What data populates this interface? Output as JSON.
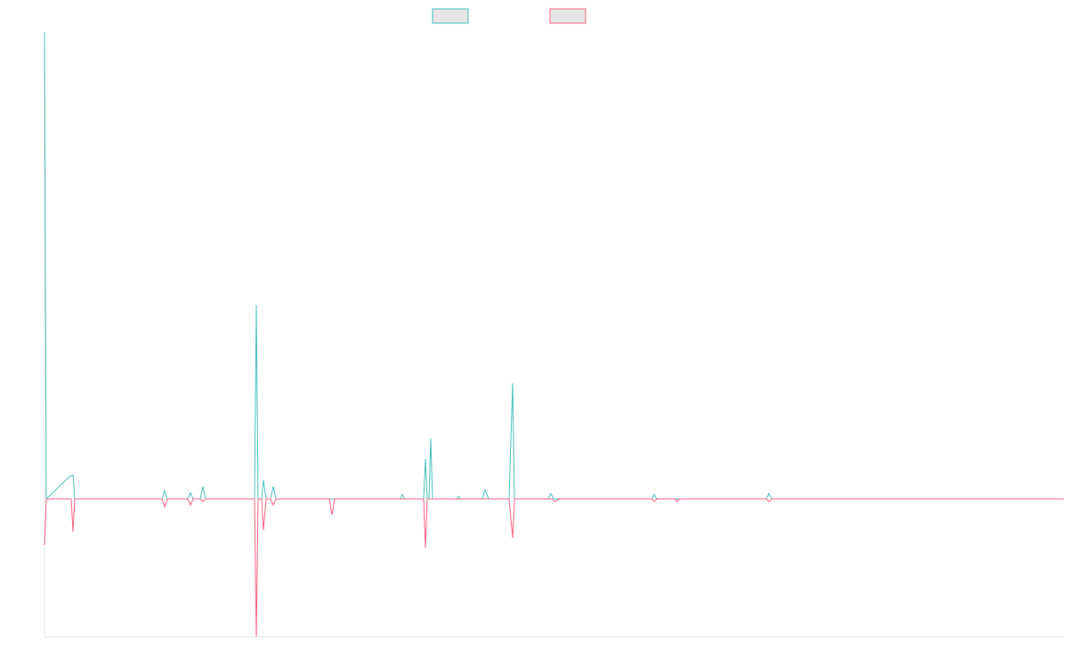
{
  "chart_data": {
    "type": "line",
    "title": "",
    "xlabel": "",
    "ylabel": "",
    "grid": false,
    "legend_placement": "top-center",
    "xlim": [
      0,
      1145
    ],
    "ylim": [
      -155,
      525
    ],
    "series": [
      {
        "color": "#4bc0c0",
        "fill": "#e5e5e5",
        "points": [
          [
            0,
            525
          ],
          [
            2,
            0
          ],
          [
            28,
            25
          ],
          [
            32,
            27
          ],
          [
            34,
            0
          ],
          [
            132,
            0
          ],
          [
            135,
            9
          ],
          [
            138,
            0
          ],
          [
            161,
            0
          ],
          [
            164,
            7
          ],
          [
            167,
            0
          ],
          [
            175,
            0
          ],
          [
            178,
            14
          ],
          [
            181,
            0
          ],
          [
            236,
            0
          ],
          [
            238,
            218
          ],
          [
            240,
            0
          ],
          [
            244,
            0
          ],
          [
            246,
            21
          ],
          [
            249,
            0
          ],
          [
            254,
            0
          ],
          [
            257,
            14
          ],
          [
            260,
            0
          ],
          [
            400,
            0
          ],
          [
            402,
            5
          ],
          [
            405,
            0
          ],
          [
            426,
            0
          ],
          [
            428,
            45
          ],
          [
            430,
            0
          ],
          [
            432,
            0
          ],
          [
            434,
            68
          ],
          [
            436,
            0
          ],
          [
            463,
            0
          ],
          [
            465,
            3
          ],
          [
            468,
            0
          ],
          [
            492,
            0
          ],
          [
            495,
            10
          ],
          [
            499,
            0
          ],
          [
            522,
            0
          ],
          [
            526,
            130
          ],
          [
            528,
            0
          ],
          [
            566,
            0
          ],
          [
            569,
            6
          ],
          [
            572,
            0
          ],
          [
            683,
            0
          ],
          [
            685,
            5
          ],
          [
            688,
            0
          ],
          [
            811,
            0
          ],
          [
            814,
            6
          ],
          [
            817,
            0
          ],
          [
            1145,
            0
          ]
        ]
      },
      {
        "color": "#ff6384",
        "fill": "#e5e5e5",
        "points": [
          [
            0,
            -52
          ],
          [
            2,
            0
          ],
          [
            30,
            0
          ],
          [
            32,
            -37
          ],
          [
            34,
            0
          ],
          [
            132,
            0
          ],
          [
            135,
            -9
          ],
          [
            138,
            0
          ],
          [
            161,
            0
          ],
          [
            164,
            -7
          ],
          [
            167,
            0
          ],
          [
            175,
            0
          ],
          [
            178,
            -3
          ],
          [
            181,
            0
          ],
          [
            236,
            0
          ],
          [
            238,
            -155
          ],
          [
            240,
            0
          ],
          [
            244,
            0
          ],
          [
            246,
            -35
          ],
          [
            249,
            0
          ],
          [
            254,
            0
          ],
          [
            257,
            -7
          ],
          [
            260,
            0
          ],
          [
            320,
            0
          ],
          [
            323,
            -18
          ],
          [
            326,
            0
          ],
          [
            426,
            0
          ],
          [
            428,
            -55
          ],
          [
            430,
            0
          ],
          [
            522,
            0
          ],
          [
            526,
            -44
          ],
          [
            528,
            0
          ],
          [
            570,
            0
          ],
          [
            574,
            -3
          ],
          [
            578,
            0
          ],
          [
            683,
            0
          ],
          [
            685,
            -3
          ],
          [
            688,
            0
          ],
          [
            708,
            0
          ],
          [
            711,
            -3
          ],
          [
            714,
            0
          ],
          [
            811,
            0
          ],
          [
            814,
            -3
          ],
          [
            817,
            0
          ],
          [
            1145,
            0
          ]
        ]
      }
    ]
  }
}
